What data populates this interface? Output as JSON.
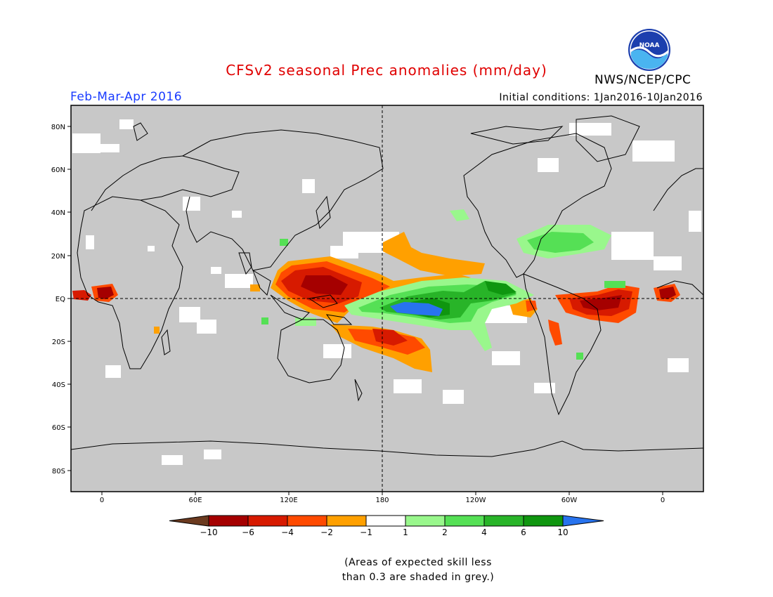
{
  "header": {
    "title": "CFSv2 seasonal Prec anomalies (mm/day)",
    "season": "Feb-Mar-Apr 2016",
    "initial_conditions": "Initial conditions: 1Jan2016-10Jan2016",
    "agency": "NWS/NCEP/CPC",
    "logo_text": "NOAA"
  },
  "map": {
    "lat_labels": [
      "80N",
      "60N",
      "40N",
      "20N",
      "EQ",
      "20S",
      "40S",
      "60S",
      "80S"
    ],
    "lon_labels": [
      "0",
      "60E",
      "120E",
      "180",
      "120W",
      "60W",
      "0"
    ],
    "background_color": "#c8c8c8"
  },
  "colorbar": {
    "labels": [
      "-10",
      "-6",
      "-4",
      "-2",
      "-1",
      "1",
      "2",
      "4",
      "6",
      "10"
    ],
    "colors": [
      "#6b3a1f",
      "#a50000",
      "#d71a00",
      "#ff4a00",
      "#ffa000",
      "#ffffff",
      "#99f78c",
      "#55e055",
      "#28b428",
      "#0f960f",
      "#2873ee"
    ]
  },
  "note": {
    "line1": "(Areas of expected skill less",
    "line2": "than 0.3 are shaded in grey.)"
  }
}
